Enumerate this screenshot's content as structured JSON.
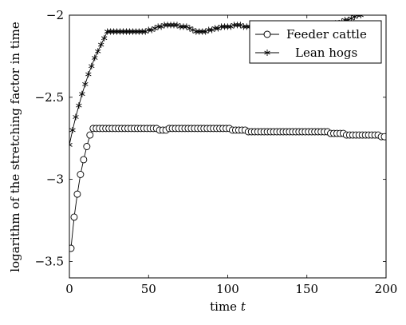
{
  "chart_data": {
    "type": "line",
    "xlabel": "time",
    "xlabel_var": "t",
    "ylabel": "logarithm of the stretching factor in time",
    "xlim": [
      0,
      200
    ],
    "ylim": [
      -3.6,
      -2
    ],
    "xticks": [
      0,
      50,
      100,
      150,
      200
    ],
    "yticks": [
      -3.5,
      -3,
      -2.5,
      -2
    ],
    "xtick_labels": [
      "0",
      "50",
      "100",
      "150",
      "200"
    ],
    "ytick_labels": [
      "−3.5",
      "−3",
      "−2.5",
      "−2"
    ],
    "grid": false,
    "legend_position": "top-right",
    "series": [
      {
        "name": "Feeder cattle",
        "marker": "circle",
        "x": [
          1,
          3,
          5,
          7,
          9,
          11,
          13,
          15,
          17,
          19,
          21,
          23,
          25,
          27,
          29,
          31,
          33,
          35,
          37,
          39,
          41,
          43,
          45,
          47,
          49,
          51,
          53,
          55,
          57,
          59,
          61,
          63,
          65,
          67,
          69,
          71,
          73,
          75,
          77,
          79,
          81,
          83,
          85,
          87,
          89,
          91,
          93,
          95,
          97,
          99,
          101,
          103,
          105,
          107,
          109,
          111,
          113,
          115,
          117,
          119,
          121,
          123,
          125,
          127,
          129,
          131,
          133,
          135,
          137,
          139,
          141,
          143,
          145,
          147,
          149,
          151,
          153,
          155,
          157,
          159,
          161,
          163,
          165,
          167,
          169,
          171,
          173,
          175,
          177,
          179,
          181,
          183,
          185,
          187,
          189,
          191,
          193,
          195,
          197,
          199
        ],
        "y": [
          -3.42,
          -3.23,
          -3.09,
          -2.97,
          -2.88,
          -2.8,
          -2.73,
          -2.69,
          -2.69,
          -2.69,
          -2.69,
          -2.69,
          -2.69,
          -2.69,
          -2.69,
          -2.69,
          -2.69,
          -2.69,
          -2.69,
          -2.69,
          -2.69,
          -2.69,
          -2.69,
          -2.69,
          -2.69,
          -2.69,
          -2.69,
          -2.69,
          -2.7,
          -2.7,
          -2.7,
          -2.69,
          -2.69,
          -2.69,
          -2.69,
          -2.69,
          -2.69,
          -2.69,
          -2.69,
          -2.69,
          -2.69,
          -2.69,
          -2.69,
          -2.69,
          -2.69,
          -2.69,
          -2.69,
          -2.69,
          -2.69,
          -2.69,
          -2.69,
          -2.7,
          -2.7,
          -2.7,
          -2.7,
          -2.7,
          -2.71,
          -2.71,
          -2.71,
          -2.71,
          -2.71,
          -2.71,
          -2.71,
          -2.71,
          -2.71,
          -2.71,
          -2.71,
          -2.71,
          -2.71,
          -2.71,
          -2.71,
          -2.71,
          -2.71,
          -2.71,
          -2.71,
          -2.71,
          -2.71,
          -2.71,
          -2.71,
          -2.71,
          -2.71,
          -2.71,
          -2.72,
          -2.72,
          -2.72,
          -2.72,
          -2.72,
          -2.73,
          -2.73,
          -2.73,
          -2.73,
          -2.73,
          -2.73,
          -2.73,
          -2.73,
          -2.73,
          -2.73,
          -2.73,
          -2.74,
          -2.74
        ]
      },
      {
        "name": "Lean hogs",
        "marker": "star",
        "x": [
          0,
          2,
          4,
          6,
          8,
          10,
          12,
          14,
          16,
          18,
          20,
          22,
          24,
          26,
          28,
          30,
          32,
          34,
          36,
          38,
          40,
          42,
          44,
          46,
          48,
          50,
          52,
          54,
          56,
          58,
          60,
          62,
          64,
          66,
          68,
          70,
          72,
          74,
          76,
          78,
          80,
          82,
          84,
          86,
          88,
          90,
          92,
          94,
          96,
          98,
          100,
          102,
          104,
          106,
          108,
          110,
          112,
          114,
          116,
          118,
          120,
          122,
          124,
          126,
          128,
          130,
          132,
          134,
          136,
          138,
          140,
          142,
          144,
          146,
          148,
          150,
          152,
          154,
          156,
          158,
          160,
          162,
          164,
          166,
          168,
          170,
          172,
          174,
          176,
          178,
          180,
          182,
          184
        ],
        "y": [
          -2.79,
          -2.7,
          -2.62,
          -2.55,
          -2.48,
          -2.42,
          -2.36,
          -2.31,
          -2.26,
          -2.22,
          -2.18,
          -2.14,
          -2.1,
          -2.1,
          -2.1,
          -2.1,
          -2.1,
          -2.1,
          -2.1,
          -2.1,
          -2.1,
          -2.1,
          -2.1,
          -2.1,
          -2.1,
          -2.09,
          -2.09,
          -2.08,
          -2.07,
          -2.07,
          -2.06,
          -2.06,
          -2.06,
          -2.06,
          -2.06,
          -2.07,
          -2.07,
          -2.07,
          -2.08,
          -2.09,
          -2.1,
          -2.1,
          -2.1,
          -2.1,
          -2.09,
          -2.09,
          -2.08,
          -2.08,
          -2.07,
          -2.07,
          -2.07,
          -2.07,
          -2.06,
          -2.06,
          -2.06,
          -2.07,
          -2.07,
          -2.07,
          -2.07,
          -2.08,
          -2.08,
          -2.08,
          -2.08,
          -2.07,
          -2.07,
          -2.07,
          -2.07,
          -2.07,
          -2.06,
          -2.06,
          -2.06,
          -2.06,
          -2.06,
          -2.06,
          -2.07,
          -2.07,
          -2.07,
          -2.07,
          -2.07,
          -2.07,
          -2.06,
          -2.06,
          -2.06,
          -2.06,
          -2.05,
          -2.05,
          -2.04,
          -2.03,
          -2.03,
          -2.02,
          -2.01,
          -2.0,
          -2.0
        ]
      }
    ]
  }
}
